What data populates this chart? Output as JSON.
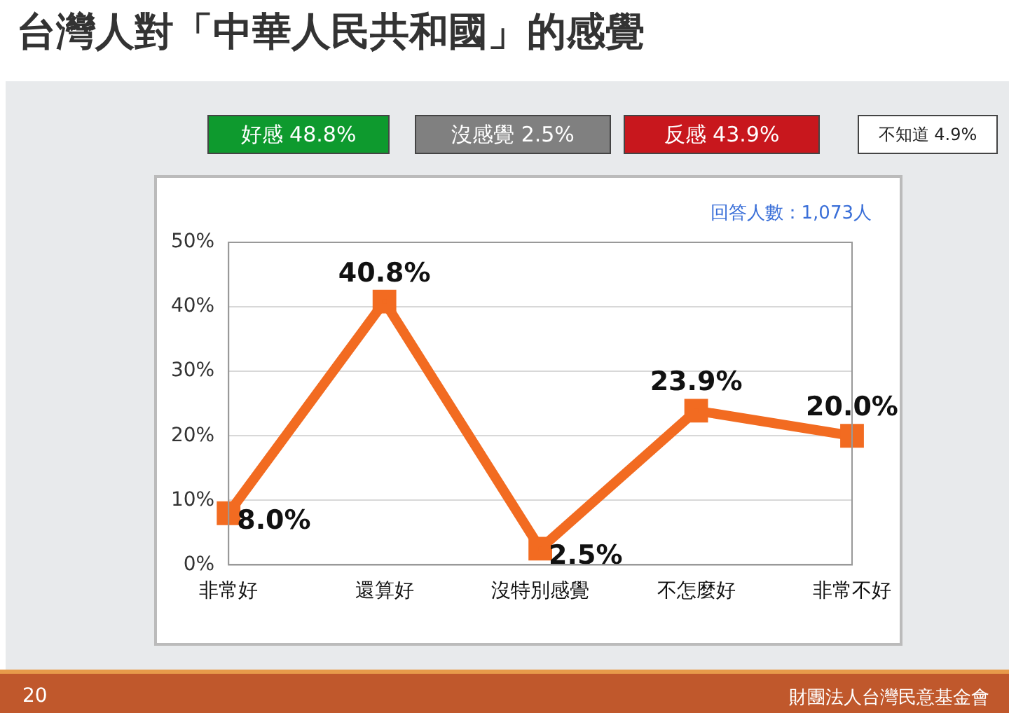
{
  "chart_data": {
    "type": "line",
    "title": "台灣人對「中華人民共和國」的感覺",
    "categories": [
      "非常好",
      "還算好",
      "沒特別感覺",
      "不怎麼好",
      "非常不好"
    ],
    "series": [
      {
        "color": "#f26b21",
        "values": [
          8.0,
          40.8,
          2.5,
          23.9,
          20.0
        ],
        "value_labels": [
          "8.0%",
          "40.8%",
          "2.5%",
          "23.9%",
          "20.0%"
        ]
      }
    ],
    "ylim": [
      0,
      50
    ],
    "yticks": [
      {
        "value": 0,
        "label": "0%"
      },
      {
        "value": 10,
        "label": "10%"
      },
      {
        "value": 20,
        "label": "20%"
      },
      {
        "value": 30,
        "label": "30%"
      },
      {
        "value": 40,
        "label": "40%"
      },
      {
        "value": 50,
        "label": "50%"
      }
    ],
    "grid": "y",
    "legend": false,
    "marker": "square",
    "line_style": "solid",
    "annotations": [
      "好感 48.8%",
      "沒感覺 2.5%",
      "反感 43.9%",
      "不知道 4.9%",
      "回答人數：1,073人",
      "20",
      "財團法人台灣民意基金會"
    ]
  }
}
